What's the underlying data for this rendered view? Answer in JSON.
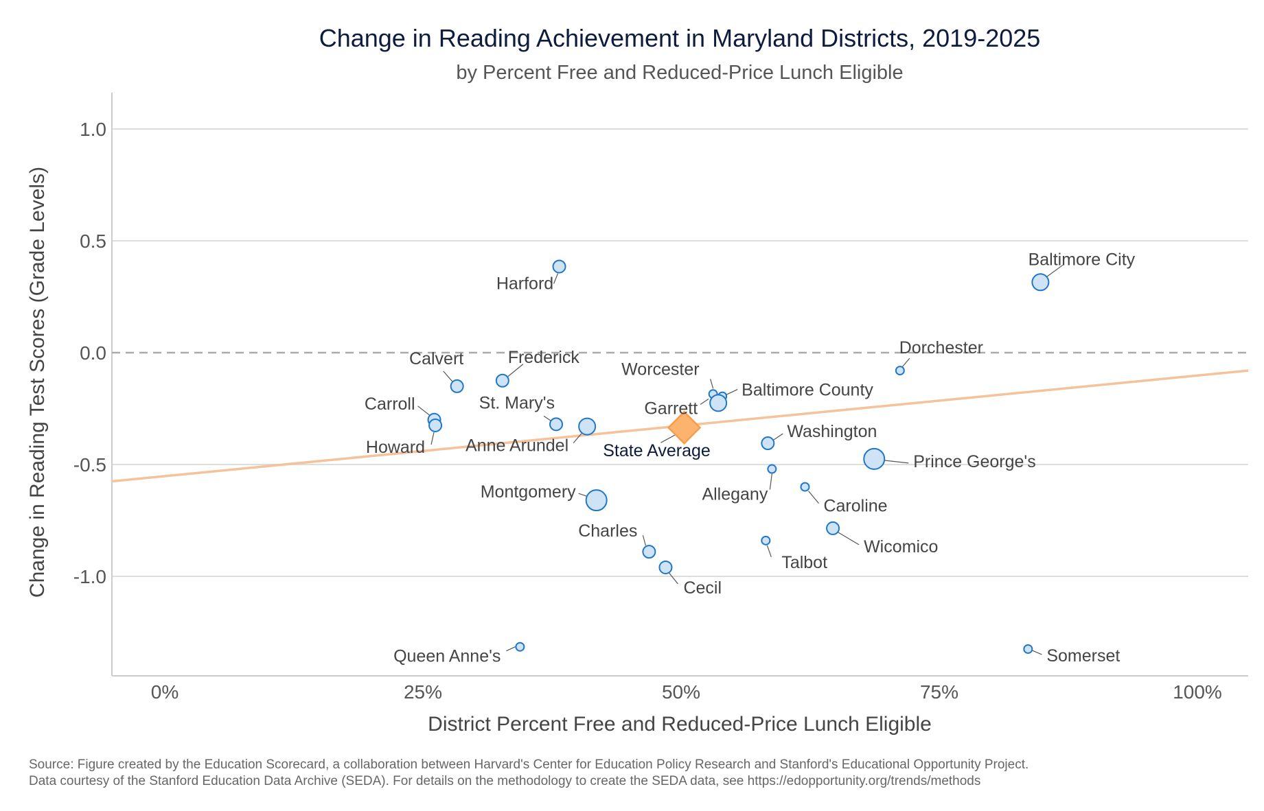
{
  "chart_data": {
    "type": "scatter",
    "title": "Change in Reading Achievement in Maryland Districts, 2019-2025",
    "subtitle": "by Percent Free and Reduced-Price Lunch Eligible",
    "xlabel": "District Percent Free and Reduced-Price Lunch Eligible",
    "ylabel": "Change in Reading Test Scores (Grade Levels)",
    "xlim": [
      -5,
      105
    ],
    "ylim": [
      -1.4,
      1.15
    ],
    "x_ticks": [
      {
        "value": 0,
        "label": "0%"
      },
      {
        "value": 25,
        "label": "25%"
      },
      {
        "value": 50,
        "label": "50%"
      },
      {
        "value": 75,
        "label": "75%"
      },
      {
        "value": 100,
        "label": "100%"
      }
    ],
    "y_ticks": [
      {
        "value": 1.0,
        "label": "1.0"
      },
      {
        "value": 0.5,
        "label": "0.5"
      },
      {
        "value": 0.0,
        "label": "0.0"
      },
      {
        "value": -0.5,
        "label": "-0.5"
      },
      {
        "value": -1.0,
        "label": "-1.0"
      }
    ],
    "grid": true,
    "reference_line_y": 0,
    "trend_line": {
      "x": [
        -5,
        105
      ],
      "y": [
        -0.575,
        -0.08
      ],
      "color": "#f5c29a"
    },
    "state_average": {
      "name": "State Average",
      "x": 50.3,
      "y": -0.335,
      "color": "#f79d4b"
    },
    "point_color": "#1f77c8",
    "point_fill": "#cfe3f6",
    "points": [
      {
        "name": "Baltimore City",
        "x": 84.8,
        "y": 0.315,
        "size": "large"
      },
      {
        "name": "Harford",
        "x": 38.2,
        "y": 0.385,
        "size": "medium"
      },
      {
        "name": "Dorchester",
        "x": 71.2,
        "y": -0.08,
        "size": "small"
      },
      {
        "name": "Calvert",
        "x": 28.3,
        "y": -0.15,
        "size": "medium"
      },
      {
        "name": "Frederick",
        "x": 32.7,
        "y": -0.125,
        "size": "medium"
      },
      {
        "name": "Worcester",
        "x": 53.1,
        "y": -0.185,
        "size": "small"
      },
      {
        "name": "Baltimore County",
        "x": 54.0,
        "y": -0.195,
        "size": "small"
      },
      {
        "name": "Garrett",
        "x": 53.6,
        "y": -0.225,
        "size": "large"
      },
      {
        "name": "Carroll",
        "x": 26.1,
        "y": -0.3,
        "size": "medium"
      },
      {
        "name": "Howard",
        "x": 26.2,
        "y": -0.325,
        "size": "medium"
      },
      {
        "name": "St. Mary's",
        "x": 37.9,
        "y": -0.32,
        "size": "medium"
      },
      {
        "name": "Anne Arundel",
        "x": 40.9,
        "y": -0.33,
        "size": "large"
      },
      {
        "name": "Washington",
        "x": 58.4,
        "y": -0.405,
        "size": "medium"
      },
      {
        "name": "Allegany",
        "x": 58.8,
        "y": -0.52,
        "size": "small"
      },
      {
        "name": "Prince George's",
        "x": 68.7,
        "y": -0.475,
        "size": "xlarge"
      },
      {
        "name": "Montgomery",
        "x": 41.8,
        "y": -0.66,
        "size": "xlarge"
      },
      {
        "name": "Caroline",
        "x": 62.0,
        "y": -0.6,
        "size": "small"
      },
      {
        "name": "Wicomico",
        "x": 64.7,
        "y": -0.785,
        "size": "medium"
      },
      {
        "name": "Talbot",
        "x": 58.2,
        "y": -0.84,
        "size": "small"
      },
      {
        "name": "Charles",
        "x": 46.9,
        "y": -0.89,
        "size": "medium"
      },
      {
        "name": "Cecil",
        "x": 48.5,
        "y": -0.96,
        "size": "medium"
      },
      {
        "name": "Queen Anne's",
        "x": 34.4,
        "y": -1.315,
        "size": "small"
      },
      {
        "name": "Somerset",
        "x": 83.6,
        "y": -1.325,
        "size": "small"
      }
    ]
  },
  "source_lines": [
    "Source: Figure created by the Education Scorecard, a collaboration between Harvard's Center for Education Policy Research and Stanford's Educational Opportunity Project.",
    "Data courtesy of the Stanford Education Data Archive (SEDA). For details on the methodology to create the SEDA data, see https://edopportunity.org/trends/methods"
  ]
}
